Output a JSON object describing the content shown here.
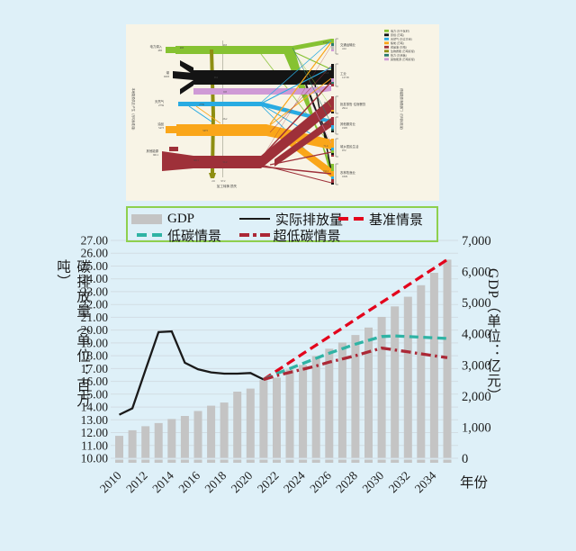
{
  "page": {
    "background": "#def0f8"
  },
  "sankey": {
    "background": "#f8f4e6",
    "legend": [
      {
        "label": "电力 (万千瓦时)",
        "color": "#86c232"
      },
      {
        "label": "原煤 (万吨)",
        "color": "#141414"
      },
      {
        "label": "天然气 (万立方米)",
        "color": "#29abe2"
      },
      {
        "label": "焦炭 (万吨)",
        "color": "#faa61a"
      },
      {
        "label": "成品油 (万吨)",
        "color": "#9e3039"
      },
      {
        "label": "生物质能 (万吨标煤)",
        "color": "#8e8e12"
      },
      {
        "label": "热力 (万吉焦)",
        "color": "#2a7a6e"
      },
      {
        "label": "其他能源 (万吨标煤)",
        "color": "#cf9ad6"
      }
    ],
    "left_axis_title": "本地能源供应/产生（万吨标准煤）",
    "right_axis_title": "终端能源消费部门（万吨标准煤）",
    "bottom_label": "加工转换 损失",
    "left_nodes": [
      {
        "label": "电力调入",
        "value": "483"
      },
      {
        "label": "煤",
        "value": "9203"
      },
      {
        "label": "天然气",
        "value": "2759"
      },
      {
        "label": "油品",
        "value": "5473"
      },
      {
        "label": "其他能源",
        "value": "6011"
      }
    ],
    "dest_nodes": [
      {
        "label": "交通运输业",
        "value": "414"
      },
      {
        "label": "工业",
        "value": "12718"
      },
      {
        "label": "批发零售·住宿餐饮",
        "value": "2914"
      },
      {
        "label": "其他服务业",
        "value": "1905"
      },
      {
        "label": "城乡居民生活",
        "value": "972"
      },
      {
        "label": "农林牧渔业",
        "value": "1829"
      }
    ],
    "flow_values": [
      "483",
      "962",
      "263",
      "0.8",
      "26.2",
      "51.2",
      "2759",
      "5473",
      "6011",
      "171.2",
      "502.8",
      "8.1",
      "283.1",
      "71.4",
      "152.1",
      "2.6",
      "97.2"
    ]
  },
  "chart": {
    "legend": [
      {
        "label": "GDP"
      },
      {
        "label": "实际排放量"
      },
      {
        "label": "基准情景"
      },
      {
        "label": "低碳情景"
      },
      {
        "label": "超低碳情景"
      }
    ],
    "left_axis_title": "碳排放量（单位：百万吨）",
    "right_axis_title": "GDP（单位：亿元）",
    "x_axis_title": "年份",
    "left_ticks": [
      "27.00",
      "26.00",
      "25.00",
      "24.00",
      "23.00",
      "22.00",
      "21.00",
      "20.00",
      "19.00",
      "18.00",
      "17.00",
      "16.00",
      "15.00",
      "14.00",
      "13.00",
      "12.00",
      "11.00",
      "10.00"
    ],
    "right_ticks": [
      "7,000",
      "6,000",
      "5,000",
      "4,000",
      "3,000",
      "2,000",
      "1,000",
      "0"
    ],
    "x_ticks": [
      "2010",
      "2012",
      "2014",
      "2016",
      "2018",
      "2020",
      "2022",
      "2024",
      "2026",
      "2028",
      "2030",
      "2032",
      "2034"
    ]
  },
  "chart_data": {
    "type": "bar+line",
    "x_years": [
      2010,
      2011,
      2012,
      2013,
      2014,
      2015,
      2016,
      2017,
      2018,
      2019,
      2020,
      2021,
      2022,
      2023,
      2024,
      2025,
      2026,
      2027,
      2028,
      2029,
      2030,
      2031,
      2032,
      2033,
      2034,
      2035
    ],
    "bar_series": {
      "name": "GDP",
      "axis": "right",
      "color": "#c4c4c4",
      "values": [
        720,
        900,
        1030,
        1130,
        1260,
        1360,
        1520,
        1690,
        1790,
        2140,
        2240,
        2510,
        2590,
        2850,
        3000,
        3280,
        3520,
        3720,
        3960,
        4200,
        4540,
        4880,
        5190,
        5560,
        5960,
        6380
      ]
    },
    "line_series": [
      {
        "name": "实际排放量",
        "color": "#1a1a1a",
        "style": "solid",
        "start_year": 2010,
        "values": [
          13.4,
          13.9,
          16.9,
          19.85,
          19.9,
          17.45,
          16.95,
          16.7,
          16.6,
          16.6,
          16.65,
          16.15
        ]
      },
      {
        "name": "基准情景",
        "color": "#e3041c",
        "style": "dashed",
        "start_year": 2021,
        "values": [
          16.15,
          16.82,
          17.49,
          18.16,
          18.82,
          19.49,
          20.16,
          20.83,
          21.5,
          22.16,
          22.83,
          23.5,
          24.17,
          24.83,
          25.5
        ]
      },
      {
        "name": "低碳情景",
        "color": "#2fb3a4",
        "style": "dashed",
        "start_year": 2021,
        "values": [
          16.15,
          16.6,
          17.0,
          17.4,
          17.8,
          18.2,
          18.55,
          18.9,
          19.2,
          19.5,
          19.55,
          19.5,
          19.45,
          19.4,
          19.35
        ]
      },
      {
        "name": "超低碳情景",
        "color": "#ab2836",
        "style": "dash-dot",
        "start_year": 2021,
        "values": [
          16.15,
          16.45,
          16.7,
          16.95,
          17.2,
          17.5,
          17.75,
          18.0,
          18.3,
          18.6,
          18.45,
          18.3,
          18.15,
          18.0,
          17.85
        ]
      }
    ],
    "left_ylim": [
      10,
      27
    ],
    "right_ylim": [
      0,
      7000
    ],
    "gridlines": true,
    "legend_position": "top"
  }
}
